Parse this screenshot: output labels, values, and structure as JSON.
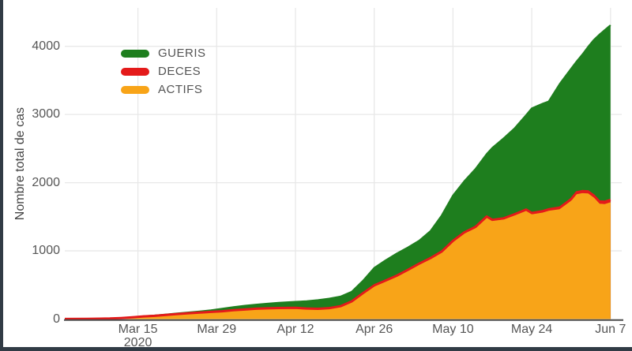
{
  "frame": {
    "border_color": "#313b45",
    "background": "#ffffff"
  },
  "y_axis": {
    "title": "Nombre total de cas",
    "ticks": [
      0,
      1000,
      2000,
      3000,
      4000
    ]
  },
  "x_axis": {
    "ticks": [
      {
        "day": 13,
        "label": "Mar 15",
        "sublabel": "2020"
      },
      {
        "day": 27,
        "label": "Mar 29",
        "sublabel": ""
      },
      {
        "day": 41,
        "label": "Apr 12",
        "sublabel": ""
      },
      {
        "day": 55,
        "label": "Apr 26",
        "sublabel": ""
      },
      {
        "day": 69,
        "label": "May 10",
        "sublabel": ""
      },
      {
        "day": 83,
        "label": "May 24",
        "sublabel": ""
      },
      {
        "day": 97,
        "label": "Jun 7",
        "sublabel": ""
      }
    ]
  },
  "legend": {
    "position": "top-left",
    "items": [
      {
        "label": "GUERIS",
        "color": "#1e7e1e"
      },
      {
        "label": "DECES",
        "color": "#e41a1a"
      },
      {
        "label": "ACTIFS",
        "color": "#f8a418"
      }
    ]
  },
  "chart_data": {
    "type": "area",
    "stacked": true,
    "title": "",
    "xlabel": "",
    "ylabel": "Nombre total de cas",
    "x_unit": "days since first case (Mar 2 2020)",
    "xlim": [
      0,
      97
    ],
    "ylim": [
      0,
      4600
    ],
    "grid": true,
    "legend_position": "top-left-inside",
    "x": [
      0,
      4,
      8,
      10,
      12,
      14,
      16,
      18,
      20,
      22,
      24,
      26,
      28,
      30,
      32,
      34,
      36,
      38,
      41,
      43,
      45,
      47,
      49,
      51,
      53,
      55,
      57,
      59,
      61,
      63,
      65,
      67,
      69,
      71,
      73,
      75,
      76,
      78,
      80,
      82,
      83,
      85,
      86,
      88,
      90,
      91,
      92,
      93,
      94,
      95,
      96,
      97
    ],
    "series": [
      {
        "name": "ACTIFS",
        "color": "#f8a418",
        "stack_order": 1,
        "values": [
          1,
          4,
          8,
          15,
          25,
          38,
          47,
          60,
          72,
          84,
          93,
          102,
          112,
          125,
          136,
          146,
          152,
          156,
          158,
          148,
          143,
          153,
          180,
          250,
          370,
          485,
          555,
          625,
          710,
          800,
          880,
          975,
          1130,
          1250,
          1330,
          1480,
          1430,
          1450,
          1510,
          1575,
          1525,
          1550,
          1575,
          1600,
          1720,
          1820,
          1835,
          1830,
          1770,
          1680,
          1675,
          1700
        ]
      },
      {
        "name": "DECES",
        "color": "#e41a1a",
        "stack_order": 2,
        "values": [
          0,
          0,
          0,
          0,
          0,
          1,
          1,
          1,
          2,
          2,
          2,
          3,
          3,
          4,
          4,
          5,
          5,
          6,
          6,
          7,
          7,
          8,
          9,
          9,
          9,
          9,
          10,
          11,
          12,
          13,
          14,
          16,
          18,
          20,
          22,
          24,
          25,
          27,
          29,
          30,
          31,
          33,
          34,
          36,
          38,
          40,
          41,
          43,
          44,
          45,
          46,
          48
        ]
      },
      {
        "name": "GUERIS",
        "color": "#1e7e1e",
        "stack_order": 3,
        "values": [
          0,
          0,
          0,
          0,
          1,
          1,
          4,
          6,
          8,
          11,
          17,
          25,
          37,
          46,
          55,
          61,
          69,
          78,
          89,
          107,
          128,
          139,
          141,
          141,
          181,
          256,
          295,
          324,
          328,
          337,
          396,
          529,
          664,
          750,
          848,
          916,
          1055,
          1173,
          1261,
          1385,
          1534,
          1577,
          1581,
          1814,
          1912,
          1920,
          2004,
          2117,
          2276,
          2445,
          2519,
          2562
        ]
      }
    ]
  }
}
